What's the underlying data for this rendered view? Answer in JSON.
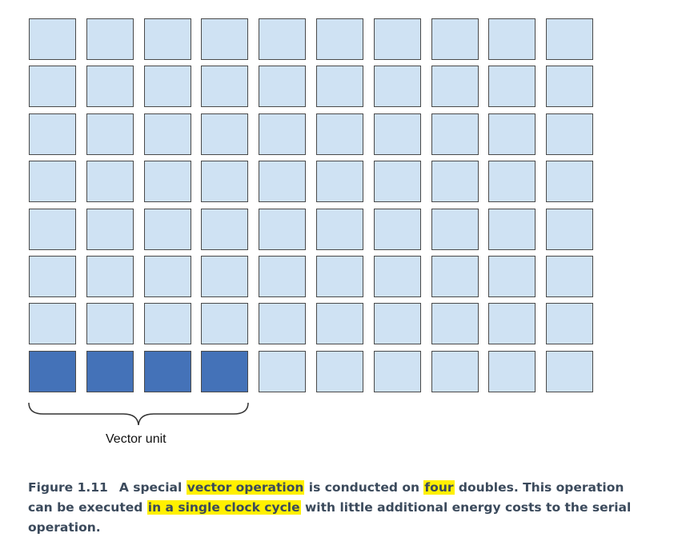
{
  "grid": {
    "rows": 8,
    "cols": 10,
    "highlight_row": 8,
    "highlight_cells": 4,
    "cell_color": "#cfe2f3",
    "highlight_color": "#4472b8",
    "border_color": "#4a4a4a"
  },
  "brace": {
    "label": "Vector unit"
  },
  "caption": {
    "figure_number": "Figure 1.11",
    "part1": "A special ",
    "hl1": "vector operation",
    "part2": " is conducted on ",
    "hl2": "four",
    "part3": " doubles. This operation can be executed ",
    "hl3": "in a single clock cycle",
    "part4": " with little additional energy costs to the serial operation.",
    "highlight_color": "#fff000"
  }
}
